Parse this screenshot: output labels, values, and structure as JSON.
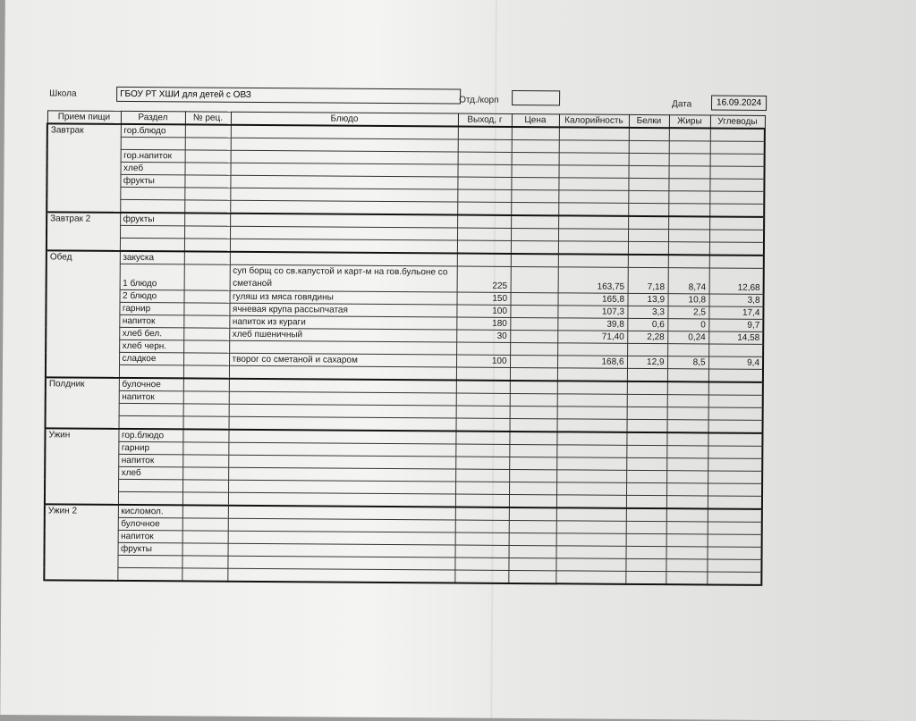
{
  "header": {
    "school_label": "Школа",
    "school_value": "ГБОУ РТ ХШИ для детей с ОВЗ",
    "dept_label": "Отд./корп",
    "dept_value": "",
    "date_label": "Дата",
    "date_value": "16.09.2024"
  },
  "columns": [
    "Прием пищи",
    "Раздел",
    "№ рец.",
    "Блюдо",
    "Выход, г",
    "Цена",
    "Калорийность",
    "Белки",
    "Жиры",
    "Углеводы"
  ],
  "sections": [
    {
      "meal": "Завтрак",
      "rows": [
        [
          "гор.блюдо"
        ],
        [
          ""
        ],
        [
          "гор.напиток"
        ],
        [
          "хлеб"
        ],
        [
          "фрукты"
        ],
        [
          ""
        ],
        [
          ""
        ]
      ]
    },
    {
      "meal": "Завтрак 2",
      "rows": [
        [
          "фрукты"
        ],
        [
          ""
        ],
        [
          ""
        ]
      ]
    },
    {
      "meal": "Обед",
      "rows": [
        [
          "закуска"
        ],
        [
          "1 блюдо",
          "",
          "суп борщ со св.капустой и карт-м на гов.бульоне со сметаной",
          "225",
          "",
          "163,75",
          "7,18",
          "8,74",
          "12,68"
        ],
        [
          "2 блюдо",
          "",
          "гуляш из мяса говядины",
          "150",
          "",
          "165,8",
          "13,9",
          "10,8",
          "3,8"
        ],
        [
          "гарнир",
          "",
          "ячневая крупа рассыпчатая",
          "100",
          "",
          "107,3",
          "3,3",
          "2,5",
          "17,4"
        ],
        [
          "напиток",
          "",
          "напиток из кураги",
          "180",
          "",
          "39,8",
          "0,6",
          "0",
          "9,7"
        ],
        [
          "хлеб бел.",
          "",
          "хлеб пшеничный",
          "30",
          "",
          "71,40",
          "2,28",
          "0,24",
          "14,58"
        ],
        [
          "хлеб черн."
        ],
        [
          "сладкое",
          "",
          "творог со сметаной и сахаром",
          "100",
          "",
          "168,6",
          "12,9",
          "8,5",
          "9,4"
        ],
        [
          ""
        ]
      ]
    },
    {
      "meal": "Полдник",
      "rows": [
        [
          "булочное"
        ],
        [
          "напиток"
        ],
        [
          ""
        ],
        [
          ""
        ]
      ]
    },
    {
      "meal": "Ужин",
      "rows": [
        [
          "гор.блюдо"
        ],
        [
          "гарнир"
        ],
        [
          "напиток"
        ],
        [
          "хлеб"
        ],
        [
          ""
        ],
        [
          ""
        ]
      ]
    },
    {
      "meal": "Ужин 2",
      "rows": [
        [
          "кисломол."
        ],
        [
          "булочное"
        ],
        [
          "напиток"
        ],
        [
          "фрукты"
        ],
        [
          ""
        ],
        [
          ""
        ]
      ]
    }
  ]
}
